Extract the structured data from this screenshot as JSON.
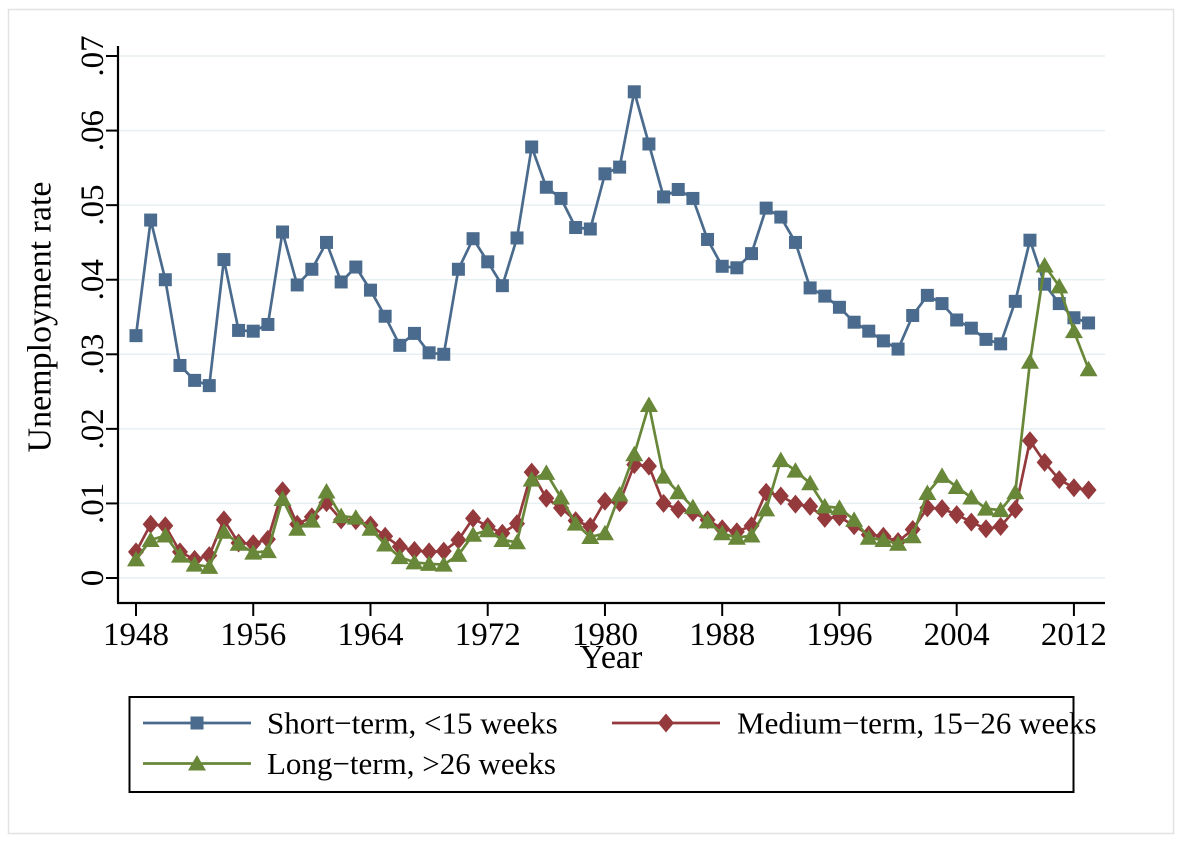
{
  "figure": {
    "y_axis_title": "Unemployment rate",
    "x_axis_title": "Year"
  },
  "chart_data": {
    "type": "line",
    "title": "",
    "xlabel": "Year",
    "ylabel": "Unemployment rate",
    "grid": true,
    "legend_position": "bottom",
    "ylim": [
      0,
      0.07
    ],
    "xlim": [
      1946.8,
      2014.1
    ],
    "x_ticks": [
      1948,
      1956,
      1964,
      1972,
      1980,
      1988,
      1996,
      2004,
      2012
    ],
    "y_ticks": {
      "values": [
        0,
        0.01,
        0.02,
        0.03,
        0.04,
        0.05,
        0.06,
        0.07
      ],
      "labels": [
        "0",
        ".01",
        ".02",
        ".03",
        ".04",
        ".05",
        ".06",
        ".07"
      ]
    },
    "x": [
      1948,
      1949,
      1950,
      1951,
      1952,
      1953,
      1954,
      1955,
      1956,
      1957,
      1958,
      1959,
      1960,
      1961,
      1962,
      1963,
      1964,
      1965,
      1966,
      1967,
      1968,
      1969,
      1970,
      1971,
      1972,
      1973,
      1974,
      1975,
      1976,
      1977,
      1978,
      1979,
      1980,
      1981,
      1982,
      1983,
      1984,
      1985,
      1986,
      1987,
      1988,
      1989,
      1990,
      1991,
      1992,
      1993,
      1994,
      1995,
      1996,
      1997,
      1998,
      1999,
      2000,
      2001,
      2002,
      2003,
      2004,
      2005,
      2006,
      2007,
      2008,
      2009,
      2010,
      2011,
      2012,
      2013
    ],
    "series": [
      {
        "name": "Short−term, <15 weeks",
        "marker": "square",
        "color": "#4a6b8d",
        "values": [
          0.0325,
          0.048,
          0.04,
          0.0285,
          0.0265,
          0.0258,
          0.0427,
          0.0332,
          0.0331,
          0.034,
          0.0464,
          0.0393,
          0.0414,
          0.045,
          0.0397,
          0.0417,
          0.0386,
          0.0351,
          0.0312,
          0.0328,
          0.0302,
          0.03,
          0.0414,
          0.0455,
          0.0424,
          0.0392,
          0.0456,
          0.0578,
          0.0524,
          0.0509,
          0.047,
          0.0468,
          0.0542,
          0.0551,
          0.0652,
          0.0582,
          0.0511,
          0.0521,
          0.0509,
          0.0454,
          0.0418,
          0.0416,
          0.0435,
          0.0496,
          0.0484,
          0.045,
          0.0389,
          0.0378,
          0.0363,
          0.0343,
          0.0331,
          0.0318,
          0.0307,
          0.0352,
          0.0379,
          0.0368,
          0.0346,
          0.0335,
          0.032,
          0.0314,
          0.0371,
          0.0453,
          0.0394,
          0.0368,
          0.0349,
          0.0342
        ]
      },
      {
        "name": "Medium−term, 15−26 weeks",
        "marker": "diamond",
        "color": "#943a3c",
        "values": [
          0.0035,
          0.0072,
          0.007,
          0.0035,
          0.0025,
          0.003,
          0.0078,
          0.0047,
          0.0046,
          0.0052,
          0.0117,
          0.0072,
          0.0082,
          0.0101,
          0.0078,
          0.0077,
          0.0071,
          0.0056,
          0.0042,
          0.0037,
          0.0035,
          0.0036,
          0.0051,
          0.008,
          0.0069,
          0.006,
          0.0073,
          0.0142,
          0.0107,
          0.0094,
          0.0077,
          0.0069,
          0.0103,
          0.0101,
          0.0152,
          0.015,
          0.01,
          0.0092,
          0.0088,
          0.0078,
          0.0066,
          0.0062,
          0.007,
          0.0115,
          0.011,
          0.0099,
          0.0096,
          0.008,
          0.0082,
          0.007,
          0.0058,
          0.0056,
          0.0049,
          0.0065,
          0.0094,
          0.0093,
          0.0085,
          0.0075,
          0.0066,
          0.0069,
          0.0092,
          0.0184,
          0.0155,
          0.0132,
          0.0121,
          0.0118
        ]
      },
      {
        "name": "Long−term, >26 weeks",
        "marker": "triangle",
        "color": "#688738",
        "values": [
          0.0025,
          0.0051,
          0.0057,
          0.003,
          0.0018,
          0.0015,
          0.0062,
          0.0046,
          0.0034,
          0.0036,
          0.0106,
          0.0066,
          0.0077,
          0.0116,
          0.0083,
          0.0081,
          0.0066,
          0.0045,
          0.0028,
          0.0021,
          0.0019,
          0.0018,
          0.0031,
          0.0058,
          0.0064,
          0.0051,
          0.0048,
          0.0132,
          0.0141,
          0.0108,
          0.0073,
          0.0055,
          0.006,
          0.0112,
          0.0166,
          0.0232,
          0.0136,
          0.0115,
          0.0095,
          0.0076,
          0.006,
          0.0054,
          0.0057,
          0.0092,
          0.0158,
          0.0144,
          0.0127,
          0.0096,
          0.0094,
          0.0078,
          0.0054,
          0.0051,
          0.0046,
          0.0056,
          0.0114,
          0.0137,
          0.0122,
          0.0108,
          0.0093,
          0.0091,
          0.0115,
          0.029,
          0.0419,
          0.0391,
          0.0331,
          0.028
        ]
      }
    ],
    "style": {
      "grid_color": "#e7eff2",
      "axis_color": "#000000",
      "background": "#ffffff",
      "border_color": "#e2e2e2"
    }
  }
}
